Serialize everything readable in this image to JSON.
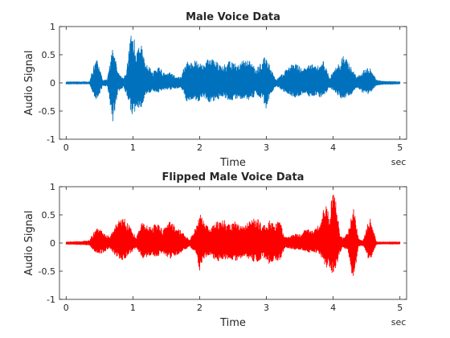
{
  "chart_data": [
    {
      "type": "line",
      "title": "Male Voice Data",
      "xlabel": "Time",
      "ylabel": "Audio Signal",
      "xunit": "sec",
      "xlim": [
        -0.1,
        5.1
      ],
      "ylim": [
        -1,
        1
      ],
      "xticks": [
        "0",
        "1",
        "2",
        "3",
        "4",
        "5"
      ],
      "yticks": [
        "-1",
        "-0.5",
        "0",
        "0.5",
        "1"
      ],
      "grid": false,
      "color": "#0072BD",
      "envelope": {
        "t": [
          0,
          0.35,
          0.45,
          0.55,
          0.62,
          0.7,
          0.78,
          0.86,
          0.9,
          0.97,
          1.0,
          1.05,
          1.12,
          1.2,
          1.3,
          1.4,
          1.48,
          1.56,
          1.64,
          1.72,
          1.8,
          1.88,
          1.95,
          2.05,
          2.15,
          2.25,
          2.35,
          2.45,
          2.55,
          2.65,
          2.75,
          2.85,
          2.95,
          3.0,
          3.05,
          3.15,
          3.25,
          3.35,
          3.45,
          3.55,
          3.65,
          3.75,
          3.85,
          3.95,
          4.05,
          4.15,
          4.25,
          4.35,
          4.45,
          4.55,
          4.65,
          4.75,
          5.0
        ],
        "upper": [
          0.02,
          0.02,
          0.48,
          0.05,
          0.08,
          0.68,
          0.18,
          0.08,
          0.2,
          0.85,
          0.97,
          0.55,
          0.7,
          0.35,
          0.2,
          0.28,
          0.16,
          0.18,
          0.12,
          0.1,
          0.4,
          0.35,
          0.42,
          0.3,
          0.46,
          0.38,
          0.3,
          0.4,
          0.33,
          0.42,
          0.38,
          0.25,
          0.4,
          0.55,
          0.3,
          0.05,
          0.18,
          0.3,
          0.38,
          0.25,
          0.35,
          0.28,
          0.4,
          0.1,
          0.3,
          0.48,
          0.35,
          0.1,
          0.22,
          0.28,
          0.05,
          0.03,
          0.02
        ],
        "lower": [
          -0.02,
          -0.02,
          -0.35,
          -0.05,
          -0.06,
          -0.7,
          -0.15,
          -0.07,
          -0.18,
          -0.5,
          -0.6,
          -0.45,
          -0.5,
          -0.2,
          -0.15,
          -0.18,
          -0.12,
          -0.12,
          -0.1,
          -0.08,
          -0.32,
          -0.3,
          -0.38,
          -0.25,
          -0.35,
          -0.3,
          -0.25,
          -0.32,
          -0.28,
          -0.3,
          -0.32,
          -0.2,
          -0.3,
          -0.5,
          -0.22,
          -0.05,
          -0.15,
          -0.22,
          -0.28,
          -0.2,
          -0.25,
          -0.22,
          -0.3,
          -0.08,
          -0.2,
          -0.3,
          -0.25,
          -0.08,
          -0.18,
          -0.2,
          -0.04,
          -0.03,
          -0.02
        ]
      }
    },
    {
      "type": "line",
      "title": "Flipped Male Voice Data",
      "xlabel": "Time",
      "ylabel": "Audio Signal",
      "xunit": "sec",
      "xlim": [
        -0.1,
        5.1
      ],
      "ylim": [
        -1,
        1
      ],
      "xticks": [
        "0",
        "1",
        "2",
        "3",
        "4",
        "5"
      ],
      "yticks": [
        "-1",
        "-0.5",
        "0",
        "0.5",
        "1"
      ],
      "grid": false,
      "color": "#FF0000",
      "mirrored_from": 0
    }
  ]
}
